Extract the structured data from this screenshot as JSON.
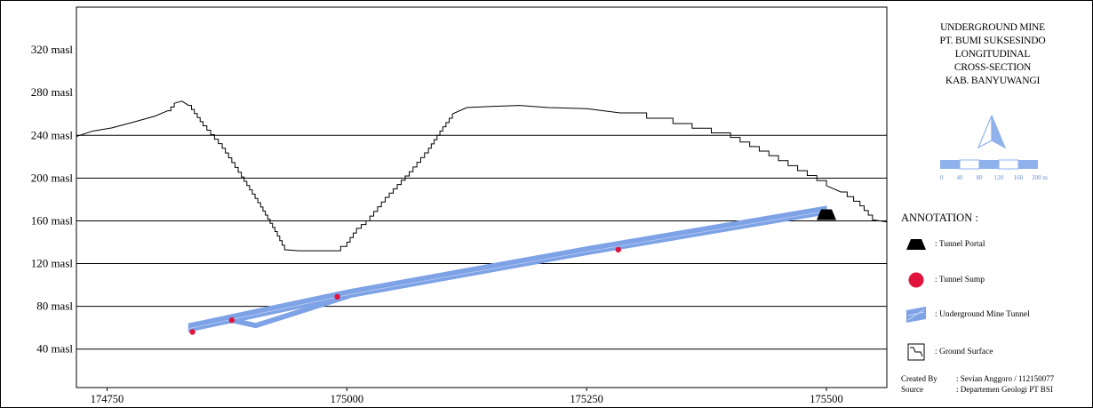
{
  "chart_data": {
    "type": "line",
    "title": "",
    "xlabel": "",
    "ylabel": "",
    "xlim": [
      174718,
      175563
    ],
    "ylim": [
      4,
      360
    ],
    "y_gridlines": [
      40,
      80,
      120,
      160,
      200,
      240
    ],
    "y_ticks": [
      {
        "value": 40,
        "label": "40 masl"
      },
      {
        "value": 80,
        "label": "80 masl"
      },
      {
        "value": 120,
        "label": "120 masl"
      },
      {
        "value": 160,
        "label": "160 masl"
      },
      {
        "value": 200,
        "label": "200 masl"
      },
      {
        "value": 240,
        "label": "240 masl"
      },
      {
        "value": 280,
        "label": "280 masl"
      },
      {
        "value": 320,
        "label": "320 masl"
      }
    ],
    "x_ticks": [
      {
        "value": 174750,
        "label": "174750"
      },
      {
        "value": 175000,
        "label": "175000"
      },
      {
        "value": 175250,
        "label": "175250"
      },
      {
        "value": 175500,
        "label": "175500"
      }
    ],
    "ground_surface": {
      "x": [
        174718,
        174735,
        174755,
        174780,
        174800,
        174813,
        174820,
        174828,
        174835,
        174850,
        174870,
        174890,
        174910,
        174925,
        174935,
        174950,
        174970,
        174987,
        175000,
        175010,
        175020,
        175040,
        175065,
        175085,
        175100,
        175110,
        175125,
        175150,
        175180,
        175210,
        175250,
        175285,
        175340,
        175400,
        175440,
        175470,
        175500,
        175515,
        175535,
        175548,
        175563
      ],
      "y": [
        239,
        244,
        247,
        253,
        258,
        263,
        270,
        272,
        268,
        249,
        228,
        201,
        173,
        150,
        133,
        132,
        132,
        132,
        140,
        153,
        160,
        182,
        206,
        228,
        248,
        260,
        266,
        267,
        268,
        266,
        265,
        261,
        251,
        238,
        221,
        207,
        193,
        187,
        174,
        161,
        159
      ]
    },
    "tunnel": {
      "x": [
        174835,
        175003,
        175250,
        175500
      ],
      "y": [
        60,
        92,
        132,
        170
      ]
    },
    "tunnel_portal": {
      "x": 175500,
      "y": 165
    },
    "tunnel_sumps": [
      {
        "x": 174839,
        "y": 56
      },
      {
        "x": 174880,
        "y": 67
      },
      {
        "x": 174990,
        "y": 89
      },
      {
        "x": 175283,
        "y": 133
      }
    ]
  },
  "panel": {
    "title_lines": [
      "UNDERGROUND MINE",
      "PT. BUMI SUKSESINDO",
      "LONGITUDINAL",
      "CROSS-SECTION",
      "KAB. BANYUWANGI"
    ],
    "scale_ticks": [
      "0",
      "40",
      "80",
      "120",
      "160",
      "200 m"
    ],
    "annotation_heading": "ANNOTATION :",
    "legend": [
      {
        "symbol": "tunnel-portal",
        "label": ": Tunnel Portal"
      },
      {
        "symbol": "tunnel-sump",
        "label": ": Tunnel Sump"
      },
      {
        "symbol": "underground-tunnel",
        "label": ": Underground Mine Tunnel"
      },
      {
        "symbol": "ground-surface",
        "label": ": Ground Surface"
      }
    ],
    "credits": [
      {
        "key": "Created By",
        "value": ": Sevian Anggoro / 112150077"
      },
      {
        "key": "Source",
        "value": ": Departemen Geologi PT BSI"
      }
    ]
  },
  "colors": {
    "tunnel": "#7ea2e6",
    "sump": "#e0143c",
    "portal": "#000000",
    "north_arrow": "#8fb1ec",
    "grid": "#000000"
  }
}
